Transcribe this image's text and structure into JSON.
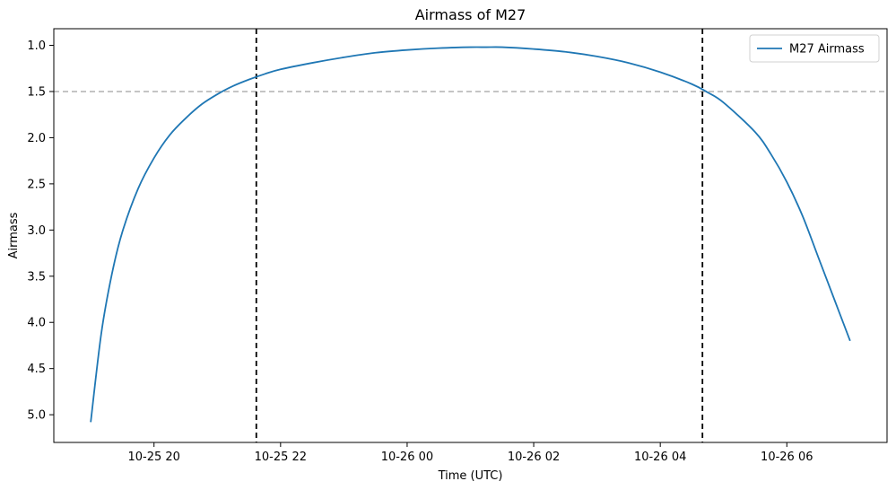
{
  "chart_data": {
    "type": "line",
    "title": "Airmass of M27",
    "xlabel": "Time (UTC)",
    "ylabel": "Airmass",
    "x_is_datetime": true,
    "xlim": [
      "2025-10-25T18:25",
      "2025-10-26T07:35"
    ],
    "ylim": [
      5.3,
      0.82
    ],
    "y_inverted": true,
    "x_ticks": [
      {
        "value": "2025-10-25T20:00",
        "label": "10-25 20"
      },
      {
        "value": "2025-10-25T22:00",
        "label": "10-25 22"
      },
      {
        "value": "2025-10-26T00:00",
        "label": "10-26 00"
      },
      {
        "value": "2025-10-26T02:00",
        "label": "10-26 02"
      },
      {
        "value": "2025-10-26T04:00",
        "label": "10-26 04"
      },
      {
        "value": "2025-10-26T06:00",
        "label": "10-26 06"
      }
    ],
    "y_ticks": [
      1.0,
      1.5,
      2.0,
      2.5,
      3.0,
      3.5,
      4.0,
      4.5,
      5.0
    ],
    "series": [
      {
        "name": "M27 Airmass",
        "color": "#1f77b4",
        "x": [
          "2025-10-25T19:00",
          "2025-10-25T19:10",
          "2025-10-25T19:20",
          "2025-10-25T19:30",
          "2025-10-25T19:45",
          "2025-10-25T20:00",
          "2025-10-25T20:15",
          "2025-10-25T20:30",
          "2025-10-25T20:45",
          "2025-10-25T21:00",
          "2025-10-25T21:15",
          "2025-10-25T21:30",
          "2025-10-25T21:45",
          "2025-10-25T22:00",
          "2025-10-25T22:30",
          "2025-10-25T23:00",
          "2025-10-25T23:30",
          "2025-10-26T00:00",
          "2025-10-26T00:30",
          "2025-10-26T01:00",
          "2025-10-26T01:15",
          "2025-10-26T01:30",
          "2025-10-26T02:00",
          "2025-10-26T02:30",
          "2025-10-26T03:00",
          "2025-10-26T03:30",
          "2025-10-26T04:00",
          "2025-10-26T04:30",
          "2025-10-26T04:45",
          "2025-10-26T05:00",
          "2025-10-26T05:30",
          "2025-10-26T05:45",
          "2025-10-26T06:00",
          "2025-10-26T06:15",
          "2025-10-26T06:30",
          "2025-10-26T06:45",
          "2025-10-26T07:00"
        ],
        "y": [
          5.08,
          4.12,
          3.48,
          3.02,
          2.55,
          2.22,
          1.97,
          1.79,
          1.64,
          1.53,
          1.44,
          1.37,
          1.31,
          1.26,
          1.19,
          1.13,
          1.08,
          1.05,
          1.03,
          1.02,
          1.02,
          1.02,
          1.04,
          1.07,
          1.12,
          1.19,
          1.29,
          1.42,
          1.51,
          1.62,
          1.94,
          2.18,
          2.48,
          2.85,
          3.3,
          3.75,
          4.2
        ]
      }
    ],
    "horizontal_lines": [
      {
        "y": 1.5,
        "color": "#b0b0b0",
        "style": "dashed"
      }
    ],
    "vertical_lines": [
      {
        "x": "2025-10-25T21:37",
        "color": "#000000",
        "style": "dashed"
      },
      {
        "x": "2025-10-26T04:40",
        "color": "#000000",
        "style": "dashed"
      }
    ],
    "legend": {
      "placement": "top-right",
      "entries": [
        "M27 Airmass"
      ]
    },
    "grid": false
  }
}
